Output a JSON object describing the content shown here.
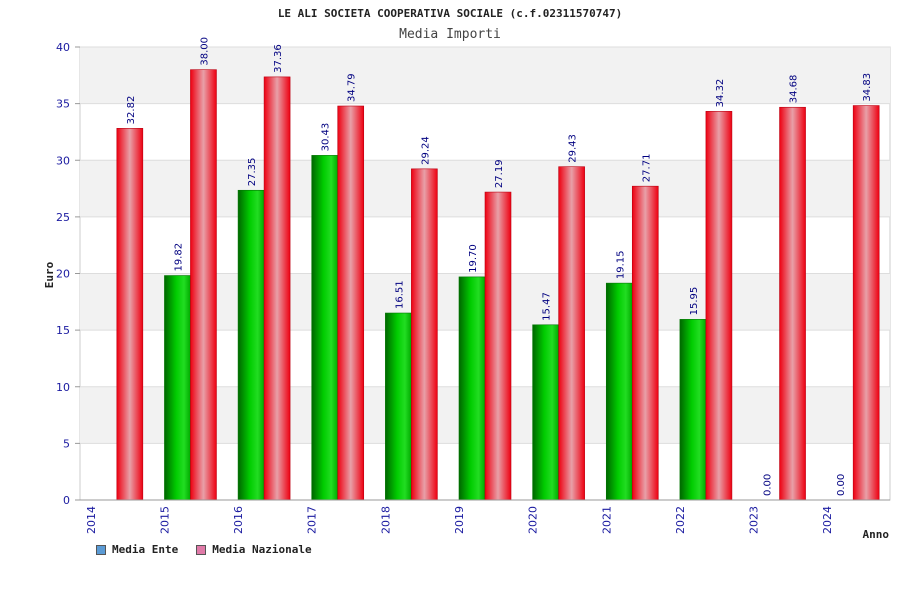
{
  "chart_data": {
    "type": "bar",
    "title": "LE ALI SOCIETA COOPERATIVA SOCIALE (c.f.02311570747)",
    "subtitle": "Media Importi",
    "xlabel": "Anno",
    "ylabel": "Euro",
    "ylim": [
      0,
      40
    ],
    "yticks": [
      "0",
      "5",
      "10",
      "15",
      "20",
      "25",
      "30",
      "35",
      "40"
    ],
    "categories": [
      "2014",
      "2015",
      "2016",
      "2017",
      "2018",
      "2019",
      "2020",
      "2021",
      "2022",
      "2023",
      "2024"
    ],
    "series": [
      {
        "name": "Media Ente",
        "color": "#00bb00",
        "values": [
          null,
          19.82,
          27.35,
          30.43,
          16.51,
          19.7,
          15.47,
          19.15,
          15.95,
          0.0,
          0.0
        ],
        "labels": [
          "",
          "19.82",
          "27.35",
          "30.43",
          "16.51",
          "19.70",
          "15.47",
          "19.15",
          "15.95",
          "0.00",
          "0.00"
        ]
      },
      {
        "name": "Media Nazionale",
        "color": "#ee1122",
        "values": [
          32.82,
          38.0,
          37.36,
          34.79,
          29.24,
          27.19,
          29.43,
          27.71,
          34.32,
          34.68,
          34.83
        ],
        "labels": [
          "32.82",
          "38.00",
          "37.36",
          "34.79",
          "29.24",
          "27.19",
          "29.43",
          "27.71",
          "34.32",
          "34.68",
          "34.83"
        ]
      }
    ],
    "grid": true
  },
  "legend": {
    "items": [
      {
        "label": "Media Ente",
        "color": "#5b9bd5"
      },
      {
        "label": "Media Nazionale",
        "color": "#e07aa8"
      }
    ]
  }
}
